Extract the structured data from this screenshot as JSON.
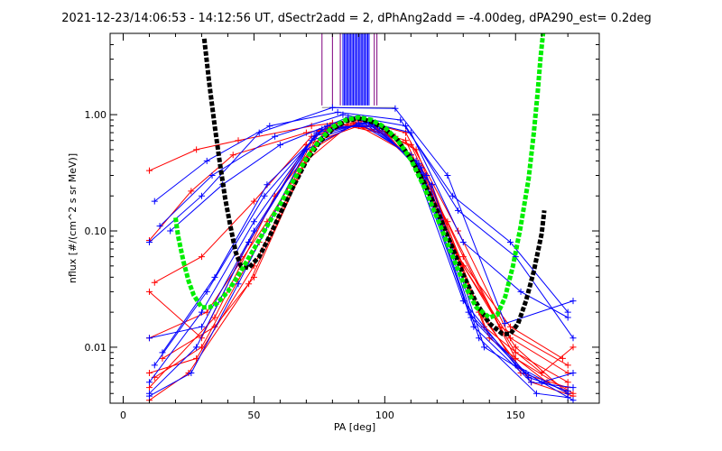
{
  "chart_data": {
    "type": "line",
    "title": "2021-12-23/14:06:53 - 14:12:56 UT, dSectr2add = 2, dPhAng2add = -4.00deg, dPA290_est=   0.2deg",
    "xlabel": "PA [deg]",
    "ylabel": "nflux [#/(cm^2 s sr MeV)]",
    "xlim": [
      -5,
      182
    ],
    "ylim": [
      0.0033,
      5.0
    ],
    "yscale": "log",
    "xticks": [
      0,
      50,
      100,
      150
    ],
    "xtick_labels": [
      "0",
      "50",
      "100",
      "150"
    ],
    "yticks": [
      0.01,
      0.1,
      1.0
    ],
    "ytick_labels": [
      "0.01",
      "0.10",
      "1.00"
    ],
    "grid": false,
    "legend": "none",
    "colors": {
      "red_spectra": "#ff0000",
      "blue_spectra": "#0000ff",
      "black_fit": "#000000",
      "green_fit": "#00ee00",
      "purple_markers": "#7f007f"
    },
    "fit_curves": [
      {
        "color": "black",
        "points": [
          [
            31,
            4.5
          ],
          [
            33,
            1.8
          ],
          [
            35,
            0.8
          ],
          [
            37,
            0.38
          ],
          [
            39,
            0.19
          ],
          [
            41,
            0.11
          ],
          [
            43,
            0.066
          ],
          [
            45,
            0.05
          ],
          [
            48,
            0.048
          ],
          [
            52,
            0.06
          ],
          [
            56,
            0.09
          ],
          [
            60,
            0.14
          ],
          [
            65,
            0.24
          ],
          [
            70,
            0.4
          ],
          [
            75,
            0.58
          ],
          [
            80,
            0.75
          ],
          [
            85,
            0.88
          ],
          [
            90,
            0.93
          ],
          [
            95,
            0.87
          ],
          [
            100,
            0.76
          ],
          [
            105,
            0.6
          ],
          [
            110,
            0.42
          ],
          [
            115,
            0.26
          ],
          [
            120,
            0.15
          ],
          [
            125,
            0.08
          ],
          [
            130,
            0.042
          ],
          [
            135,
            0.024
          ],
          [
            140,
            0.016
          ],
          [
            145,
            0.013
          ],
          [
            148,
            0.013
          ],
          [
            151,
            0.016
          ],
          [
            154,
            0.025
          ],
          [
            157,
            0.045
          ],
          [
            160,
            0.095
          ],
          [
            161,
            0.15
          ]
        ]
      },
      {
        "color": "green",
        "points": [
          [
            20,
            0.13
          ],
          [
            21,
            0.09
          ],
          [
            23,
            0.055
          ],
          [
            25,
            0.037
          ],
          [
            27,
            0.028
          ],
          [
            30,
            0.022
          ],
          [
            33,
            0.022
          ],
          [
            36,
            0.024
          ],
          [
            40,
            0.03
          ],
          [
            45,
            0.045
          ],
          [
            50,
            0.07
          ],
          [
            55,
            0.11
          ],
          [
            60,
            0.17
          ],
          [
            65,
            0.27
          ],
          [
            70,
            0.42
          ],
          [
            75,
            0.6
          ],
          [
            80,
            0.78
          ],
          [
            85,
            0.9
          ],
          [
            90,
            0.95
          ],
          [
            95,
            0.9
          ],
          [
            100,
            0.78
          ],
          [
            105,
            0.6
          ],
          [
            110,
            0.41
          ],
          [
            115,
            0.24
          ],
          [
            120,
            0.13
          ],
          [
            125,
            0.068
          ],
          [
            130,
            0.036
          ],
          [
            135,
            0.022
          ],
          [
            140,
            0.018
          ],
          [
            143,
            0.019
          ],
          [
            146,
            0.027
          ],
          [
            149,
            0.05
          ],
          [
            152,
            0.11
          ],
          [
            155,
            0.28
          ],
          [
            157,
            0.7
          ],
          [
            158.5,
            1.6
          ],
          [
            159.5,
            3.0
          ],
          [
            160.5,
            5.0
          ]
        ]
      }
    ],
    "vertical_markers": [
      {
        "color": "purple",
        "x": [
          76,
          80,
          83
        ]
      },
      {
        "color": "blue",
        "x": [
          84,
          84.5,
          85,
          85.5,
          86,
          86.5,
          87,
          87.5,
          88,
          88.5,
          89,
          89.5,
          90,
          90.5,
          91,
          91.5,
          92,
          92.5,
          93,
          93.5,
          94
        ]
      },
      {
        "color": "purple",
        "x": [
          96,
          97
        ]
      }
    ],
    "data_series": [
      {
        "color": "red",
        "points": [
          [
            10,
            0.33
          ],
          [
            28,
            0.5
          ],
          [
            44,
            0.6
          ],
          [
            72,
            0.8
          ],
          [
            90,
            0.9
          ],
          [
            108,
            0.7
          ],
          [
            128,
            0.1
          ],
          [
            148,
            0.012
          ],
          [
            170,
            0.006
          ]
        ]
      },
      {
        "color": "red",
        "points": [
          [
            10,
            0.083
          ],
          [
            26,
            0.22
          ],
          [
            42,
            0.45
          ],
          [
            70,
            0.7
          ],
          [
            88,
            0.85
          ],
          [
            110,
            0.55
          ],
          [
            130,
            0.06
          ],
          [
            150,
            0.008
          ],
          [
            172,
            0.004
          ]
        ]
      },
      {
        "color": "red",
        "points": [
          [
            12,
            0.036
          ],
          [
            30,
            0.06
          ],
          [
            50,
            0.18
          ],
          [
            72,
            0.65
          ],
          [
            92,
            0.88
          ],
          [
            112,
            0.5
          ],
          [
            130,
            0.05
          ],
          [
            150,
            0.009
          ],
          [
            170,
            0.005
          ]
        ]
      },
      {
        "color": "red",
        "points": [
          [
            10,
            0.03
          ],
          [
            30,
            0.012
          ],
          [
            45,
            0.06
          ],
          [
            70,
            0.55
          ],
          [
            90,
            0.8
          ],
          [
            110,
            0.45
          ],
          [
            128,
            0.06
          ],
          [
            148,
            0.015
          ],
          [
            168,
            0.008
          ]
        ]
      },
      {
        "color": "red",
        "points": [
          [
            10,
            0.006
          ],
          [
            28,
            0.008
          ],
          [
            50,
            0.05
          ],
          [
            75,
            0.72
          ],
          [
            92,
            0.9
          ],
          [
            112,
            0.4
          ],
          [
            132,
            0.03
          ],
          [
            152,
            0.006
          ],
          [
            170,
            0.0045
          ]
        ]
      },
      {
        "color": "red",
        "points": [
          [
            10,
            0.0035
          ],
          [
            25,
            0.006
          ],
          [
            48,
            0.035
          ],
          [
            72,
            0.5
          ],
          [
            88,
            0.82
          ],
          [
            108,
            0.6
          ],
          [
            130,
            0.05
          ],
          [
            150,
            0.01
          ],
          [
            170,
            0.004
          ]
        ]
      },
      {
        "color": "red",
        "points": [
          [
            12,
            0.0055
          ],
          [
            30,
            0.01
          ],
          [
            52,
            0.08
          ],
          [
            74,
            0.7
          ],
          [
            94,
            0.85
          ],
          [
            114,
            0.35
          ],
          [
            136,
            0.02
          ],
          [
            156,
            0.005
          ],
          [
            172,
            0.0038
          ]
        ]
      },
      {
        "color": "red",
        "points": [
          [
            10,
            0.012
          ],
          [
            32,
            0.02
          ],
          [
            55,
            0.12
          ],
          [
            78,
            0.78
          ],
          [
            96,
            0.8
          ],
          [
            116,
            0.3
          ],
          [
            138,
            0.015
          ],
          [
            160,
            0.006
          ],
          [
            172,
            0.01
          ]
        ]
      },
      {
        "color": "red",
        "points": [
          [
            10,
            0.0045
          ],
          [
            35,
            0.018
          ],
          [
            58,
            0.2
          ],
          [
            80,
            0.85
          ],
          [
            100,
            0.72
          ],
          [
            118,
            0.25
          ],
          [
            140,
            0.012
          ],
          [
            162,
            0.005
          ],
          [
            170,
            0.004
          ]
        ]
      },
      {
        "color": "red",
        "points": [
          [
            15,
            0.008
          ],
          [
            35,
            0.015
          ],
          [
            50,
            0.04
          ],
          [
            70,
            0.4
          ],
          [
            86,
            0.8
          ],
          [
            104,
            0.65
          ],
          [
            124,
            0.12
          ],
          [
            144,
            0.015
          ],
          [
            170,
            0.007
          ]
        ]
      },
      {
        "color": "blue",
        "points": [
          [
            10,
            0.08
          ],
          [
            30,
            0.2
          ],
          [
            52,
            0.7
          ],
          [
            80,
            1.15
          ],
          [
            104,
            1.13
          ],
          [
            124,
            0.3
          ],
          [
            146,
            0.016
          ],
          [
            172,
            0.025
          ]
        ]
      },
      {
        "color": "blue",
        "points": [
          [
            12,
            0.18
          ],
          [
            32,
            0.4
          ],
          [
            56,
            0.8
          ],
          [
            82,
            1.05
          ],
          [
            106,
            0.9
          ],
          [
            126,
            0.2
          ],
          [
            148,
            0.08
          ],
          [
            170,
            0.02
          ]
        ]
      },
      {
        "color": "blue",
        "points": [
          [
            14,
            0.11
          ],
          [
            34,
            0.3
          ],
          [
            58,
            0.65
          ],
          [
            84,
            1.0
          ],
          [
            108,
            0.8
          ],
          [
            128,
            0.15
          ],
          [
            150,
            0.06
          ],
          [
            172,
            0.012
          ]
        ]
      },
      {
        "color": "blue",
        "points": [
          [
            18,
            0.1
          ],
          [
            38,
            0.25
          ],
          [
            60,
            0.55
          ],
          [
            86,
            0.95
          ],
          [
            110,
            0.7
          ],
          [
            130,
            0.08
          ],
          [
            152,
            0.03
          ],
          [
            170,
            0.018
          ]
        ]
      },
      {
        "color": "blue",
        "points": [
          [
            10,
            0.005
          ],
          [
            30,
            0.02
          ],
          [
            50,
            0.12
          ],
          [
            74,
            0.7
          ],
          [
            94,
            0.85
          ],
          [
            114,
            0.35
          ],
          [
            134,
            0.015
          ],
          [
            156,
            0.005
          ],
          [
            172,
            0.0045
          ]
        ]
      },
      {
        "color": "blue",
        "points": [
          [
            10,
            0.004
          ],
          [
            28,
            0.01
          ],
          [
            48,
            0.08
          ],
          [
            72,
            0.6
          ],
          [
            92,
            0.85
          ],
          [
            112,
            0.4
          ],
          [
            132,
            0.02
          ],
          [
            154,
            0.006
          ],
          [
            172,
            0.0035
          ]
        ]
      },
      {
        "color": "blue",
        "points": [
          [
            12,
            0.007
          ],
          [
            32,
            0.03
          ],
          [
            54,
            0.2
          ],
          [
            76,
            0.75
          ],
          [
            96,
            0.82
          ],
          [
            116,
            0.3
          ],
          [
            136,
            0.012
          ],
          [
            158,
            0.004
          ],
          [
            170,
            0.0037
          ]
        ]
      },
      {
        "color": "blue",
        "points": [
          [
            10,
            0.0038
          ],
          [
            26,
            0.006
          ],
          [
            44,
            0.035
          ],
          [
            70,
            0.5
          ],
          [
            90,
            0.85
          ],
          [
            110,
            0.45
          ],
          [
            130,
            0.025
          ],
          [
            150,
            0.007
          ],
          [
            170,
            0.004
          ]
        ]
      },
      {
        "color": "blue",
        "points": [
          [
            15,
            0.009
          ],
          [
            35,
            0.04
          ],
          [
            55,
            0.25
          ],
          [
            78,
            0.8
          ],
          [
            98,
            0.78
          ],
          [
            118,
            0.25
          ],
          [
            138,
            0.01
          ],
          [
            160,
            0.005
          ],
          [
            172,
            0.006
          ]
        ]
      },
      {
        "color": "blue",
        "points": [
          [
            10,
            0.012
          ],
          [
            30,
            0.015
          ],
          [
            50,
            0.1
          ],
          [
            73,
            0.65
          ],
          [
            93,
            0.86
          ],
          [
            113,
            0.38
          ],
          [
            133,
            0.018
          ],
          [
            155,
            0.0055
          ],
          [
            170,
            0.0042
          ]
        ]
      }
    ]
  }
}
